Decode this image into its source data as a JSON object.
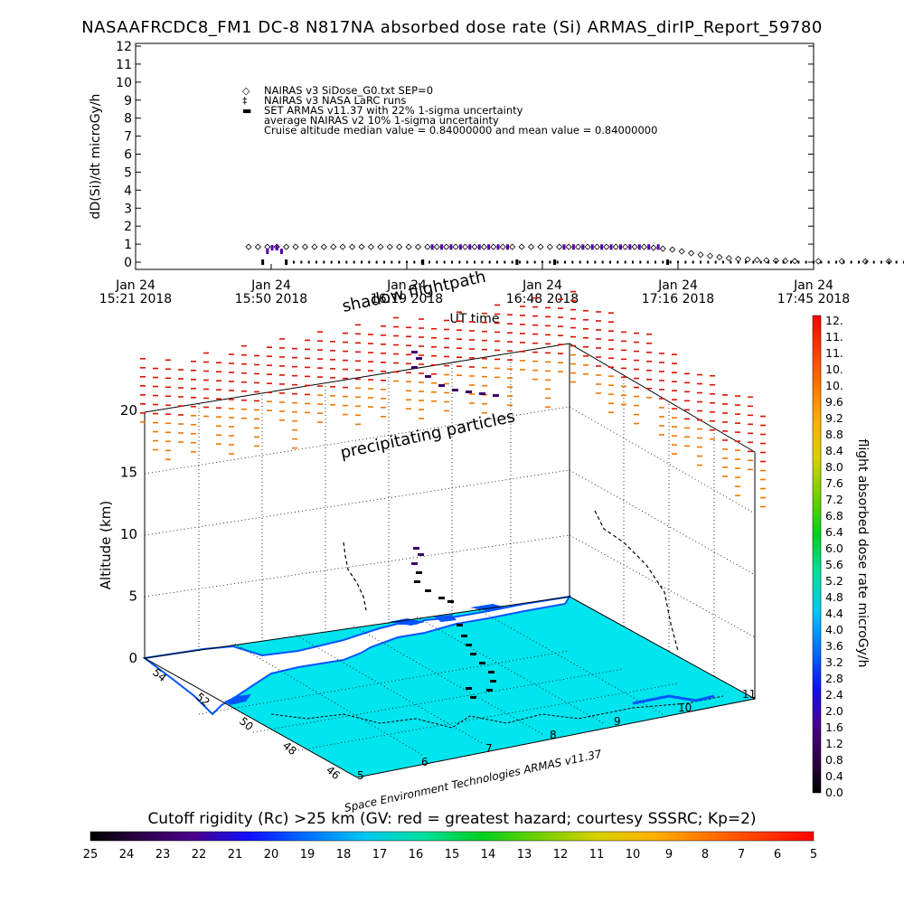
{
  "title": "NASAAFRCDC8_FM1 DC-8   N817NA absorbed dose rate (Si) ARMAS_dirIP_Report_59780",
  "chart_data": [
    {
      "type": "scatter",
      "ylabel": "dD(Si)/dt microGy/h",
      "xlabel": "UT time",
      "ylim": [
        0,
        12
      ],
      "yticks": [
        "0",
        "1",
        "2",
        "3",
        "4",
        "5",
        "6",
        "7",
        "8",
        "9",
        "10",
        "11",
        "12"
      ],
      "xticks": [
        {
          "top": "Jan 24",
          "bottom": "15:21 2018"
        },
        {
          "top": "Jan 24",
          "bottom": "15:50 2018"
        },
        {
          "top": "Jan 24",
          "bottom": "16:19 2018"
        },
        {
          "top": "Jan 24",
          "bottom": "16:48 2018"
        },
        {
          "top": "Jan 24",
          "bottom": "17:16 2018"
        },
        {
          "top": "Jan 24",
          "bottom": "17:45 2018"
        }
      ],
      "x_unit": "minutes after 15:21 UT",
      "legend": [
        {
          "symbol": "◇",
          "text": "NAIRAS v3 SiDose_G0.txt SEP=0"
        },
        {
          "symbol": "‡",
          "text": "NAIRAS v3 NASA LaRC runs"
        },
        {
          "symbol": "▬",
          "text": "SET ARMAS v11.37 with 22% 1-sigma uncertainty",
          "color": "#1a1aff"
        },
        {
          "symbol": "",
          "text": "average NAIRAS v2 10% 1-sigma uncertainty"
        },
        {
          "symbol": "",
          "text": "Cruise altitude median value = 0.84000000 and mean value = 0.84000000"
        }
      ],
      "series": [
        {
          "name": "NAIRAS v3 SiDose_G0.txt SEP=0",
          "x": [
            24,
            26,
            28,
            30,
            32,
            34,
            36,
            38,
            40,
            42,
            44,
            46,
            48,
            50,
            52,
            54,
            56,
            58,
            60,
            62,
            64,
            66,
            68,
            70,
            72,
            74,
            76,
            78,
            80,
            82,
            84,
            86,
            88,
            90,
            92,
            94,
            96,
            98,
            100,
            102,
            104,
            106,
            108,
            110,
            112,
            114,
            116,
            118,
            120,
            122,
            124,
            126,
            128,
            130,
            132,
            134,
            136,
            138,
            140,
            145,
            150,
            155,
            160,
            165,
            170,
            175,
            180,
            185,
            190,
            195,
            200,
            205,
            210,
            215,
            220,
            225,
            230,
            235,
            240,
            245
          ],
          "values": [
            0.85,
            0.85,
            0.85,
            0.85,
            0.85,
            0.85,
            0.85,
            0.85,
            0.85,
            0.85,
            0.85,
            0.85,
            0.85,
            0.85,
            0.85,
            0.85,
            0.85,
            0.85,
            0.85,
            0.85,
            0.85,
            0.85,
            0.85,
            0.85,
            0.85,
            0.85,
            0.85,
            0.85,
            0.85,
            0.85,
            0.85,
            0.85,
            0.85,
            0.85,
            0.85,
            0.85,
            0.85,
            0.85,
            0.85,
            0.85,
            0.85,
            0.85,
            0.85,
            0.8,
            0.75,
            0.7,
            0.6,
            0.5,
            0.42,
            0.35,
            0.28,
            0.22,
            0.18,
            0.15,
            0.12,
            0.1,
            0.08,
            0.07,
            0.06,
            0.05,
            0.05,
            0.04,
            0.04,
            0.04,
            0.04,
            0.03,
            0.03,
            0.03,
            0.03,
            0.03,
            0.03,
            0.03,
            0.03,
            0.03,
            0.03,
            0.03,
            0.03,
            0.03,
            0.03,
            0.03
          ]
        },
        {
          "name": "SET ARMAS v11.37 with 22% 1-sigma uncertainty",
          "x": [
            27,
            28,
            29,
            30,
            31,
            32,
            61,
            63,
            65,
            67,
            69,
            71,
            73,
            75,
            77,
            79,
            81,
            89,
            91,
            93,
            95,
            97,
            99,
            101,
            103,
            105,
            107,
            109,
            111,
            113
          ],
          "values": [
            0.0,
            0.6,
            0.8,
            0.8,
            0.6,
            0.0,
            0.0,
            0.84,
            0.84,
            0.84,
            0.84,
            0.84,
            0.84,
            0.84,
            0.84,
            0.84,
            0.0,
            0.0,
            0.84,
            0.84,
            0.84,
            0.84,
            0.84,
            0.84,
            0.84,
            0.84,
            0.84,
            0.84,
            0.84,
            0.0
          ],
          "color": "#1a1aff"
        }
      ]
    },
    {
      "type": "scatter",
      "annotations": [
        "shadow flightpath",
        "precipitating particles",
        "Space Environment Technologies ARMAS v11.37"
      ],
      "zlabel": "Altitude (km)",
      "zticks": [
        "0",
        "5",
        "10",
        "15",
        "20"
      ],
      "lat_ticks": [
        "54",
        "52",
        "50",
        "48",
        "46"
      ],
      "lon_ticks": [
        "5",
        "6",
        "7",
        "8",
        "9",
        "10",
        "11"
      ],
      "colorbar_right": {
        "label": "flight absorbed dose rate microGy/h",
        "ticks": [
          "12.",
          "11.",
          "11.",
          "10.",
          "10.",
          "9.6",
          "9.2",
          "8.8",
          "8.4",
          "8.0",
          "7.6",
          "7.2",
          "6.8",
          "6.4",
          "6.0",
          "5.6",
          "5.2",
          "4.8",
          "4.4",
          "4.0",
          "3.6",
          "3.2",
          "2.8",
          "2.4",
          "2.0",
          "1.6",
          "1.2",
          "0.8",
          "0.4",
          "0.0"
        ]
      },
      "colorbar_bottom": {
        "title": "Cutoff rigidity (Rc) >25 km (GV: red = greatest hazard; courtesy SSSRC; Kp=2)",
        "ticks": [
          "25",
          "24",
          "23",
          "22",
          "21",
          "20",
          "19",
          "18",
          "17",
          "16",
          "15",
          "14",
          "13",
          "12",
          "11",
          "10",
          "9",
          "8",
          "7",
          "6",
          "5"
        ]
      },
      "colors": {
        "sea": "#00e5ee",
        "coast": "#0055ff",
        "precip_high": "#dd1100",
        "precip_low": "#ee7700",
        "flight": "#000000"
      }
    }
  ]
}
